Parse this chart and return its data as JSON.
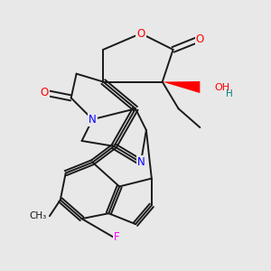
{
  "background_color": "#e8e8e8",
  "line_color": "#1a1a1a",
  "atom_colors": {
    "O": "red",
    "N": "blue",
    "F": "magenta",
    "OH_teal": "#008080",
    "stereo_wedge": "red"
  },
  "lw": 1.4,
  "figsize": [
    3.0,
    3.0
  ],
  "dpi": 100
}
